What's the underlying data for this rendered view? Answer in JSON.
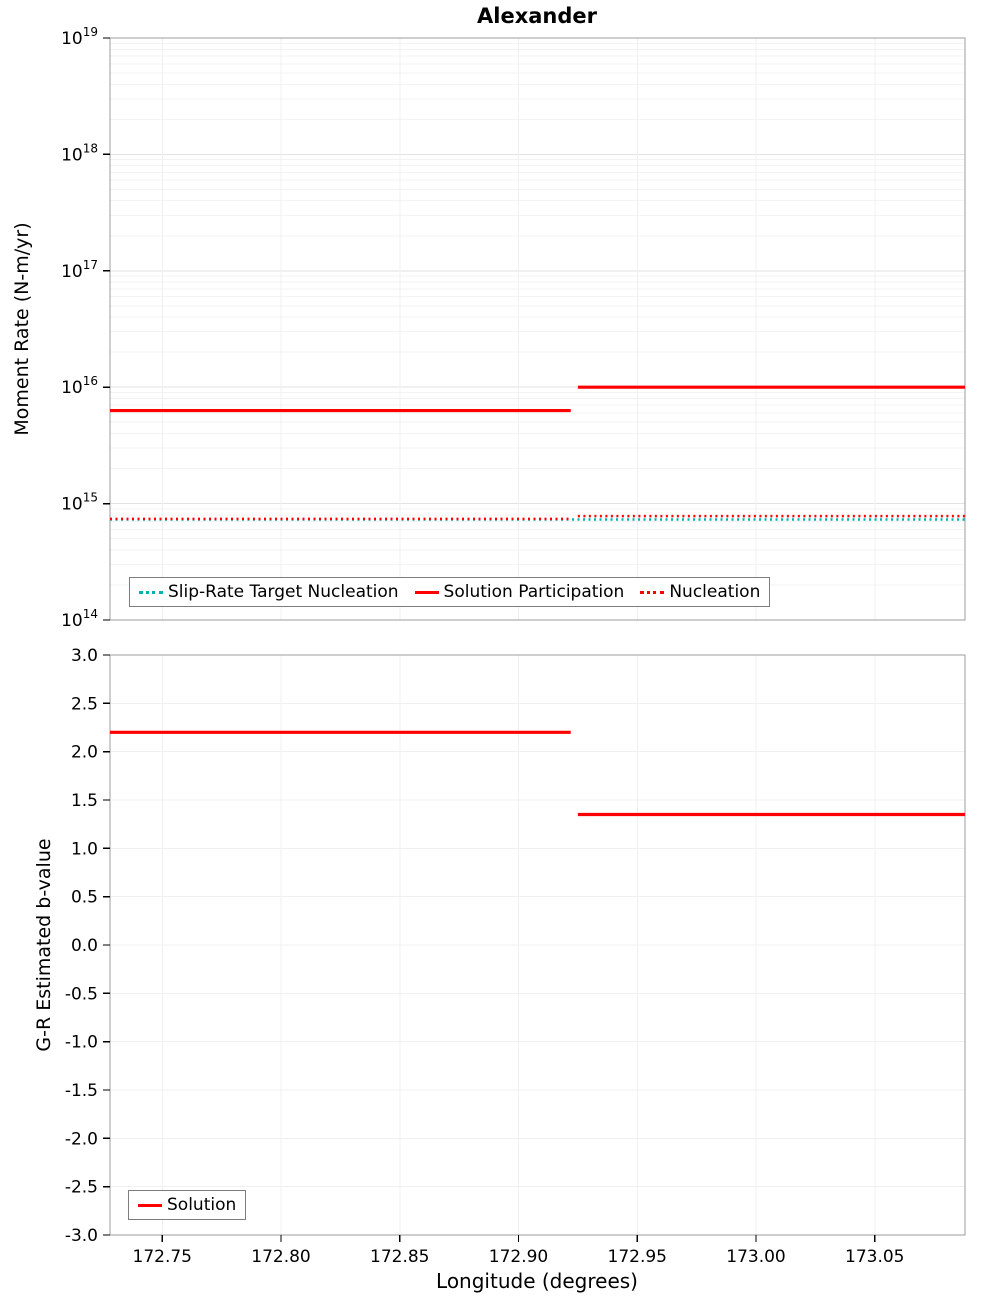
{
  "page_title": "Alexander",
  "chart_data": [
    {
      "type": "line",
      "title": "Alexander",
      "ylabel": "Moment Rate (N-m/yr)",
      "yscale": "log",
      "ylim": [
        100000000000000.0,
        1e+19
      ],
      "ytick_exponents": [
        14,
        15,
        16,
        17,
        18,
        19
      ],
      "xlim": [
        172.728,
        173.088
      ],
      "xticks": [
        172.75,
        172.8,
        172.85,
        172.9,
        172.95,
        173.0,
        173.05
      ],
      "grid": true,
      "legend_position": "bottom-center",
      "series": [
        {
          "name": "Slip-Rate Target Nucleation",
          "color": "#00b3b3",
          "line_style": "dotted",
          "segments": [
            {
              "x0": 172.728,
              "x1": 173.088,
              "y": 730000000000000.0
            }
          ]
        },
        {
          "name": "Solution Participation",
          "color": "#ff0000",
          "line_style": "solid",
          "segments": [
            {
              "x0": 172.728,
              "x1": 172.922,
              "y": 6300000000000000.0
            },
            {
              "x0": 172.925,
              "x1": 173.088,
              "y": 1e+16
            }
          ]
        },
        {
          "name": "Nucleation",
          "color": "#ff0000",
          "line_style": "dotted",
          "segments": [
            {
              "x0": 172.728,
              "x1": 172.922,
              "y": 740000000000000.0
            },
            {
              "x0": 172.925,
              "x1": 173.088,
              "y": 780000000000000.0
            }
          ]
        }
      ]
    },
    {
      "type": "line",
      "xlabel": "Longitude (degrees)",
      "ylabel": "G-R Estimated b-value",
      "yscale": "linear",
      "ylim": [
        -3.0,
        3.0
      ],
      "ytick_step": 0.5,
      "xlim": [
        172.728,
        173.088
      ],
      "xticks": [
        172.75,
        172.8,
        172.85,
        172.9,
        172.95,
        173.0,
        173.05
      ],
      "grid": true,
      "legend_position": "bottom-left",
      "series": [
        {
          "name": "Solution",
          "color": "#ff0000",
          "line_style": "solid",
          "segments": [
            {
              "x0": 172.728,
              "x1": 172.922,
              "y": 2.2
            },
            {
              "x0": 172.925,
              "x1": 173.088,
              "y": 1.35
            }
          ]
        }
      ]
    }
  ]
}
